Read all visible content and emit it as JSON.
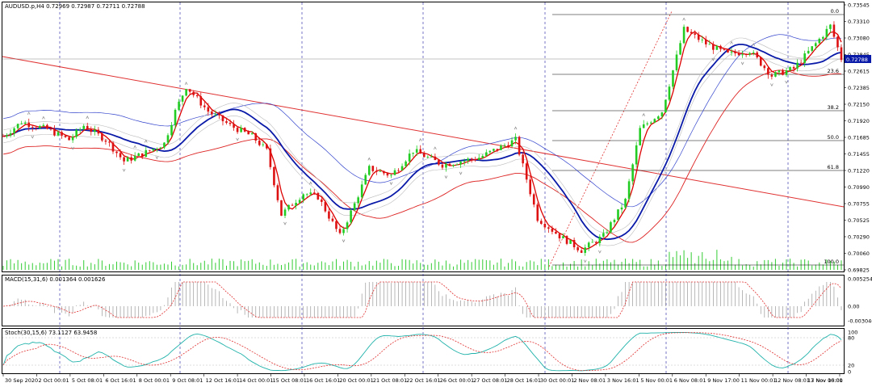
{
  "chart": {
    "symbol_info": "AUDUSD.p,H4  0.72969 0.72987 0.72711 0.72788",
    "current_price": "0.72788",
    "price_ticks": [
      "0.73545",
      "0.73310",
      "0.73080",
      "0.72845",
      "0.72615",
      "0.72385",
      "0.72150",
      "0.71920",
      "0.71685",
      "0.71455",
      "0.71220",
      "0.70990",
      "0.70755",
      "0.70525",
      "0.70290",
      "0.70060",
      "0.69825"
    ],
    "fib_labels": [
      "0.0",
      "23.6",
      "38.2",
      "50.0",
      "61.8",
      "100.0"
    ],
    "time_ticks": [
      "30 Sep 2020",
      "2 Oct 00:01",
      "5 Oct 08:01",
      "6 Oct 16:01",
      "8 Oct 00:01",
      "9 Oct 08:01",
      "12 Oct 16:01",
      "14 Oct 00:01",
      "15 Oct 08:01",
      "16 Oct 16:01",
      "20 Oct 00:01",
      "21 Oct 08:01",
      "22 Oct 16:01",
      "26 Oct 00:01",
      "27 Oct 08:01",
      "28 Oct 16:01",
      "30 Oct 00:01",
      "2 Nov 08:01",
      "3 Nov 16:01",
      "5 Nov 00:01",
      "6 Nov 08:01",
      "9 Nov 17:00",
      "11 Nov 00:01",
      "12 Nov 08:01",
      "13 Nov 16:01",
      "17 Nov 00:00"
    ]
  },
  "macd": {
    "label": "MACD(15,31,6) 0.001364 0.001626",
    "ticks": [
      "0.005254",
      "0.00",
      "-0.003046"
    ]
  },
  "stoch": {
    "label": "Stoch(30,15,6) 73.1127 63.9458",
    "ticks": [
      "100",
      "80",
      "20",
      "0"
    ]
  },
  "colors": {
    "bull": "#22cc22",
    "bear": "#dd1111",
    "ma_fast": "#dd0000",
    "ma_mid": "#0a1aa8",
    "envelope_top": "#3344cc",
    "envelope_bottom": "#dd2222",
    "grid": "#1a1aa0",
    "fib": "#000000"
  }
}
